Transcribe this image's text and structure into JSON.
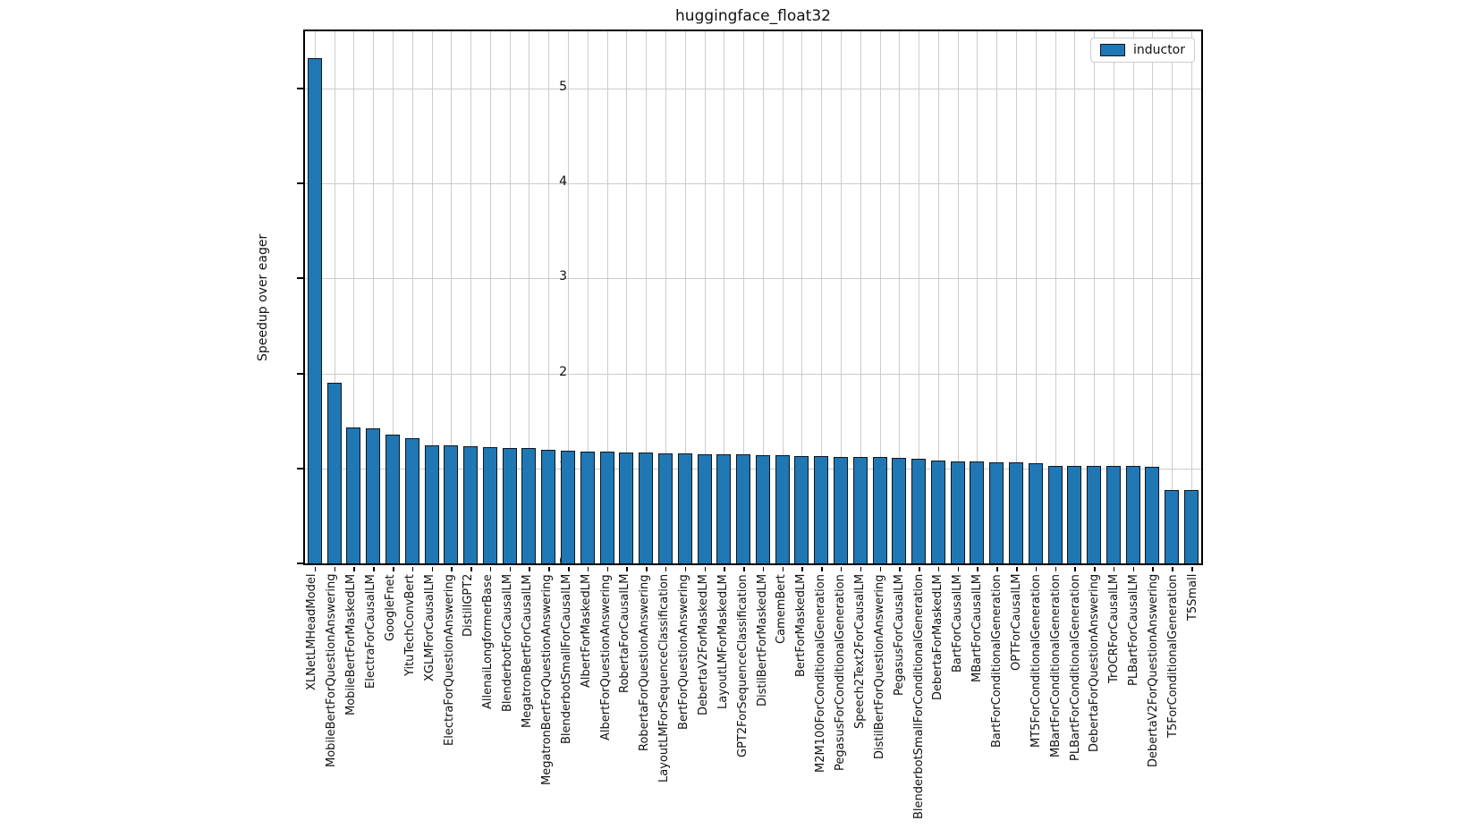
{
  "figure": {
    "title": "huggingface_float32",
    "ylabel": "Speedup over eager",
    "legend_label": "inductor",
    "colors": {
      "bar_fill": "#1f77b4",
      "bar_edge": "#10151c",
      "grid": "#cccccc",
      "spine": "#000000",
      "background": "#ffffff"
    }
  },
  "chart_data": {
    "type": "bar",
    "title": "huggingface_float32",
    "xlabel": "",
    "ylabel": "Speedup over eager",
    "legend": [
      "inductor"
    ],
    "legend_position": "upper right",
    "grid": true,
    "ylim": [
      0,
      5.6
    ],
    "yticks": [
      0,
      1,
      2,
      3,
      4,
      5
    ],
    "xtick_rotation": 90,
    "categories": [
      "XLNetLMHeadModel",
      "MobileBertForQuestionAnswering",
      "MobileBertForMaskedLM",
      "ElectraForCausalLM",
      "GoogleFnet",
      "YituTechConvBert",
      "XGLMForCausalLM",
      "ElectraForQuestionAnswering",
      "DistillGPT2",
      "AllenaiLongformerBase",
      "BlenderbotForCausalLM",
      "MegatronBertForCausalLM",
      "MegatronBertForQuestionAnswering",
      "BlenderbotSmallForCausalLM",
      "AlbertForMaskedLM",
      "AlbertForQuestionAnswering",
      "RobertaForCausalLM",
      "RobertaForQuestionAnswering",
      "LayoutLMForSequenceClassification",
      "BertForQuestionAnswering",
      "DebertaV2ForMaskedLM",
      "LayoutLMForMaskedLM",
      "GPT2ForSequenceClassification",
      "DistilBertForMaskedLM",
      "CamemBert",
      "BertForMaskedLM",
      "M2M100ForConditionalGeneration",
      "PegasusForConditionalGeneration",
      "Speech2Text2ForCausalLM",
      "DistilBertForQuestionAnswering",
      "PegasusForCausalLM",
      "BlenderbotSmallForConditionalGeneration",
      "DebertaForMaskedLM",
      "BartForCausalLM",
      "MBartForCausalLM",
      "BartForConditionalGeneration",
      "OPTForCausalLM",
      "MT5ForConditionalGeneration",
      "MBartForConditionalGeneration",
      "PLBartForConditionalGeneration",
      "DebertaForQuestionAnswering",
      "TrOCRForCausalLM",
      "PLBartForCausalLM",
      "DebertaV2ForQuestionAnswering",
      "T5ForConditionalGeneration",
      "T5Small"
    ],
    "values": [
      5.32,
      1.9,
      1.43,
      1.42,
      1.36,
      1.32,
      1.24,
      1.24,
      1.23,
      1.22,
      1.21,
      1.21,
      1.2,
      1.19,
      1.18,
      1.18,
      1.17,
      1.17,
      1.16,
      1.16,
      1.15,
      1.15,
      1.15,
      1.14,
      1.14,
      1.13,
      1.13,
      1.12,
      1.12,
      1.12,
      1.11,
      1.1,
      1.08,
      1.07,
      1.07,
      1.06,
      1.06,
      1.05,
      1.03,
      1.03,
      1.03,
      1.03,
      1.03,
      1.02,
      0.77,
      0.77
    ]
  }
}
